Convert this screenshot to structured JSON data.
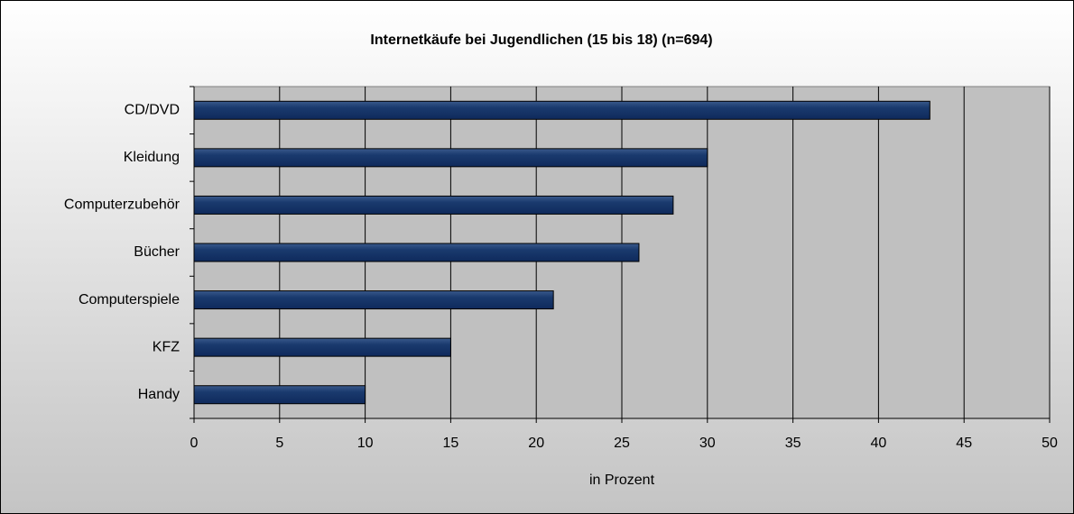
{
  "chart_data": {
    "type": "bar",
    "title": "Internetkäufe bei Jugendlichen (15 bis 18) (n=694)",
    "x_label": "in Prozent",
    "categories": [
      "CD/DVD",
      "Kleidung",
      "Computerzubehör",
      "Bücher",
      "Computerspiele",
      "KFZ",
      "Handy"
    ],
    "values": [
      43,
      30,
      28,
      26,
      21,
      15,
      10
    ],
    "color": "#0f2a5c",
    "xlim": [
      0,
      50
    ],
    "xticks": [
      0,
      5,
      10,
      15,
      20,
      25,
      30,
      35,
      40,
      45,
      50
    ],
    "grid": true
  }
}
